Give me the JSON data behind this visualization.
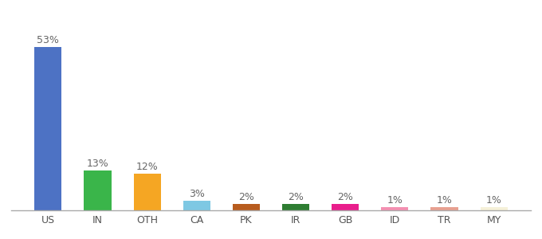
{
  "categories": [
    "US",
    "IN",
    "OTH",
    "CA",
    "PK",
    "IR",
    "GB",
    "ID",
    "TR",
    "MY"
  ],
  "values": [
    53,
    13,
    12,
    3,
    2,
    2,
    2,
    1,
    1,
    1
  ],
  "bar_colors": [
    "#4d72c4",
    "#3ab54a",
    "#f5a623",
    "#7ec8e3",
    "#b85c1e",
    "#2e7d32",
    "#e91e8c",
    "#f48fb1",
    "#e8a090",
    "#f5f0d8"
  ],
  "labels": [
    "53%",
    "13%",
    "12%",
    "3%",
    "2%",
    "2%",
    "2%",
    "1%",
    "1%",
    "1%"
  ],
  "label_fontsize": 9,
  "tick_fontsize": 9,
  "background_color": "#ffffff",
  "ylim": [
    0,
    62
  ],
  "bar_width": 0.55
}
